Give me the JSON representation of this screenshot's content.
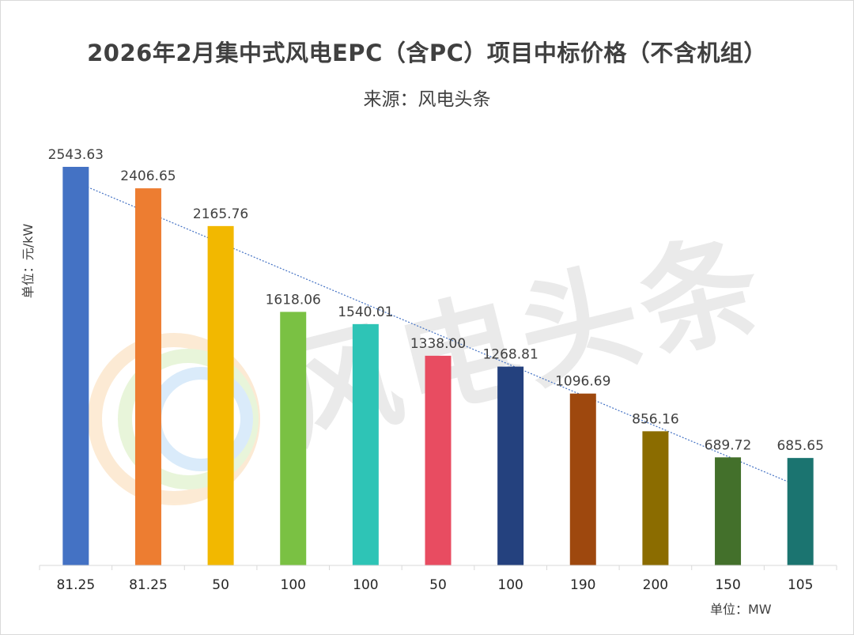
{
  "chart_data": {
    "type": "bar",
    "title": "2026年2月集中式风电EPC（含PC）项目中标价格（不含机组）",
    "subtitle": "来源：风电头条",
    "ylabel": "单位：元/kW",
    "xlabel": "单位：MW",
    "categories": [
      "81.25",
      "81.25",
      "50",
      "100",
      "100",
      "50",
      "100",
      "190",
      "200",
      "150",
      "105"
    ],
    "values": [
      2543.63,
      2406.65,
      2165.76,
      1618.06,
      1540.01,
      1338.0,
      1268.81,
      1096.69,
      856.16,
      689.72,
      685.65
    ],
    "data_labels": [
      "2543.63",
      "2406.65",
      "2165.76",
      "1618.06",
      "1540.01",
      "1338.00",
      "1268.81",
      "1096.69",
      "856.16",
      "689.72",
      "685.65"
    ],
    "colors": [
      "#4472C4",
      "#ED7D31",
      "#F2B800",
      "#7AC143",
      "#2EC4B6",
      "#E84C61",
      "#24417E",
      "#9E480E",
      "#8B6C00",
      "#43702B",
      "#1B7470"
    ],
    "ylim": [
      0,
      2700
    ],
    "trendline": {
      "type": "linear",
      "style": "dotted",
      "color": "#4472C4"
    },
    "grid": false,
    "watermark": "风电头条"
  }
}
